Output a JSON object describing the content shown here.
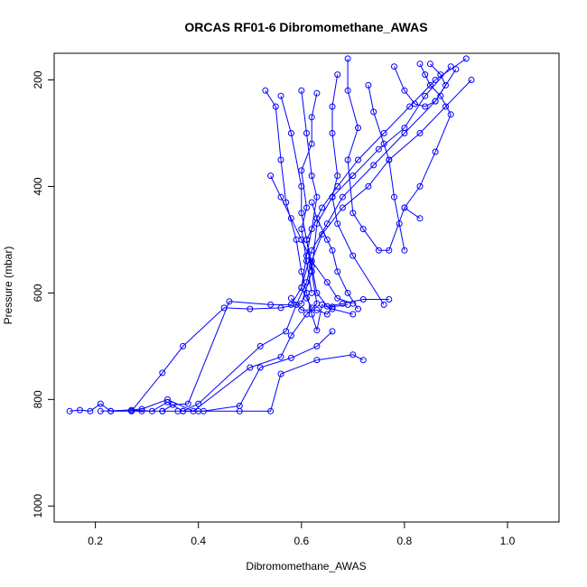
{
  "chart_data": {
    "type": "scatter",
    "title": "ORCAS RF01-6 Dibromomethane_AWAS",
    "xlabel": "Dibromomethane_AWAS",
    "ylabel": "Pressure (mbar)",
    "xlim": [
      0.12,
      1.1
    ],
    "ylim": [
      1030,
      150
    ],
    "y_reversed": true,
    "x_ticks": [
      0.2,
      0.4,
      0.6,
      0.8,
      1.0
    ],
    "x_tick_labels": [
      "0.2",
      "0.4",
      "0.6",
      "0.8",
      "1.0"
    ],
    "y_ticks": [
      200,
      400,
      600,
      800,
      1000
    ],
    "y_tick_labels": [
      "200",
      "400",
      "600",
      "800",
      "1000"
    ],
    "series_color": "#0000ff",
    "marker": "open-circle",
    "connected_by_lines": true,
    "grid": false,
    "legend": "none",
    "series": [
      {
        "points": [
          [
            0.15,
            822
          ],
          [
            0.17,
            820
          ],
          [
            0.19,
            822
          ],
          [
            0.21,
            808
          ],
          [
            0.23,
            822
          ],
          [
            0.27,
            822
          ],
          [
            0.29,
            822
          ],
          [
            0.33,
            822
          ],
          [
            0.36,
            822
          ],
          [
            0.4,
            822
          ],
          [
            0.48,
            822
          ],
          [
            0.54,
            822
          ],
          [
            0.56,
            752
          ],
          [
            0.63,
            726
          ],
          [
            0.7,
            716
          ],
          [
            0.72,
            726
          ]
        ]
      },
      {
        "points": [
          [
            0.21,
            822
          ],
          [
            0.27,
            820
          ],
          [
            0.31,
            822
          ],
          [
            0.34,
            805
          ],
          [
            0.37,
            822
          ],
          [
            0.41,
            822
          ],
          [
            0.48,
            812
          ],
          [
            0.52,
            740
          ],
          [
            0.58,
            722
          ],
          [
            0.63,
            700
          ],
          [
            0.66,
            672
          ]
        ]
      },
      {
        "points": [
          [
            0.23,
            822
          ],
          [
            0.29,
            818
          ],
          [
            0.34,
            800
          ],
          [
            0.39,
            822
          ],
          [
            0.5,
            740
          ],
          [
            0.56,
            720
          ],
          [
            0.58,
            680
          ],
          [
            0.61,
            640
          ],
          [
            0.63,
            620
          ],
          [
            0.62,
            560
          ],
          [
            0.61,
            500
          ],
          [
            0.64,
            440
          ],
          [
            0.67,
            400
          ],
          [
            0.71,
            350
          ],
          [
            0.76,
            300
          ],
          [
            0.81,
            250
          ],
          [
            0.86,
            200
          ],
          [
            0.92,
            160
          ]
        ]
      },
      {
        "points": [
          [
            0.27,
            822
          ],
          [
            0.33,
            750
          ],
          [
            0.37,
            700
          ],
          [
            0.45,
            628
          ],
          [
            0.5,
            630
          ],
          [
            0.56,
            628
          ],
          [
            0.6,
            620
          ],
          [
            0.62,
            560
          ],
          [
            0.63,
            470
          ],
          [
            0.66,
            420
          ],
          [
            0.7,
            380
          ],
          [
            0.75,
            330
          ],
          [
            0.8,
            290
          ],
          [
            0.84,
            230
          ],
          [
            0.89,
            175
          ]
        ]
      },
      {
        "points": [
          [
            0.33,
            822
          ],
          [
            0.35,
            810
          ],
          [
            0.38,
            808
          ],
          [
            0.46,
            616
          ],
          [
            0.54,
            622
          ],
          [
            0.58,
            622
          ],
          [
            0.6,
            590
          ],
          [
            0.62,
            520
          ],
          [
            0.65,
            470
          ],
          [
            0.68,
            420
          ],
          [
            0.74,
            360
          ],
          [
            0.8,
            300
          ],
          [
            0.86,
            240
          ],
          [
            0.9,
            180
          ]
        ]
      },
      {
        "points": [
          [
            0.37,
            822
          ],
          [
            0.4,
            808
          ],
          [
            0.52,
            700
          ],
          [
            0.57,
            672
          ],
          [
            0.59,
            622
          ],
          [
            0.61,
            580
          ],
          [
            0.62,
            540
          ],
          [
            0.64,
            490
          ],
          [
            0.68,
            440
          ],
          [
            0.73,
            400
          ],
          [
            0.77,
            350
          ],
          [
            0.83,
            300
          ],
          [
            0.88,
            250
          ],
          [
            0.93,
            200
          ]
        ]
      },
      {
        "points": [
          [
            0.53,
            220
          ],
          [
            0.55,
            250
          ],
          [
            0.56,
            350
          ],
          [
            0.57,
            430
          ],
          [
            0.59,
            500
          ],
          [
            0.6,
            560
          ],
          [
            0.61,
            600
          ],
          [
            0.62,
            640
          ],
          [
            0.63,
            670
          ],
          [
            0.64,
            622
          ],
          [
            0.66,
            630
          ],
          [
            0.7,
            640
          ]
        ]
      },
      {
        "points": [
          [
            0.56,
            230
          ],
          [
            0.58,
            300
          ],
          [
            0.6,
            400
          ],
          [
            0.6,
            450
          ],
          [
            0.61,
            500
          ],
          [
            0.62,
            550
          ],
          [
            0.63,
            600
          ],
          [
            0.65,
            625
          ],
          [
            0.68,
            620
          ],
          [
            0.72,
            612
          ],
          [
            0.77,
            612
          ]
        ]
      },
      {
        "points": [
          [
            0.6,
            220
          ],
          [
            0.61,
            300
          ],
          [
            0.62,
            380
          ],
          [
            0.63,
            420
          ],
          [
            0.62,
            480
          ],
          [
            0.61,
            530
          ],
          [
            0.6,
            590
          ],
          [
            0.61,
            610
          ],
          [
            0.62,
            628
          ]
        ]
      },
      {
        "points": [
          [
            0.63,
            225
          ],
          [
            0.62,
            270
          ],
          [
            0.62,
            320
          ],
          [
            0.6,
            370
          ],
          [
            0.61,
            440
          ],
          [
            0.6,
            480
          ],
          [
            0.61,
            540
          ],
          [
            0.62,
            600
          ]
        ]
      },
      {
        "points": [
          [
            0.67,
            190
          ],
          [
            0.66,
            250
          ],
          [
            0.66,
            300
          ],
          [
            0.67,
            380
          ],
          [
            0.66,
            420
          ],
          [
            0.67,
            470
          ],
          [
            0.7,
            530
          ],
          [
            0.76,
            622
          ]
        ]
      },
      {
        "points": [
          [
            0.69,
            160
          ],
          [
            0.69,
            220
          ],
          [
            0.71,
            290
          ],
          [
            0.69,
            350
          ],
          [
            0.7,
            450
          ],
          [
            0.72,
            480
          ],
          [
            0.75,
            520
          ],
          [
            0.77,
            520
          ],
          [
            0.8,
            440
          ],
          [
            0.83,
            460
          ]
        ]
      },
      {
        "points": [
          [
            0.73,
            210
          ],
          [
            0.74,
            260
          ],
          [
            0.76,
            320
          ],
          [
            0.77,
            350
          ],
          [
            0.78,
            420
          ],
          [
            0.79,
            470
          ],
          [
            0.8,
            520
          ]
        ]
      },
      {
        "points": [
          [
            0.78,
            175
          ],
          [
            0.8,
            220
          ],
          [
            0.82,
            245
          ],
          [
            0.84,
            250
          ],
          [
            0.86,
            240
          ],
          [
            0.88,
            210
          ],
          [
            0.87,
            190
          ],
          [
            0.85,
            170
          ]
        ]
      },
      {
        "points": [
          [
            0.62,
            430
          ],
          [
            0.63,
            460
          ],
          [
            0.65,
            500
          ],
          [
            0.66,
            520
          ],
          [
            0.67,
            560
          ],
          [
            0.69,
            600
          ],
          [
            0.71,
            630
          ]
        ]
      },
      {
        "points": [
          [
            0.54,
            380
          ],
          [
            0.56,
            420
          ],
          [
            0.58,
            460
          ],
          [
            0.6,
            500
          ],
          [
            0.62,
            540
          ],
          [
            0.65,
            580
          ],
          [
            0.67,
            610
          ],
          [
            0.7,
            620
          ]
        ]
      },
      {
        "points": [
          [
            0.58,
            610
          ],
          [
            0.6,
            632
          ],
          [
            0.63,
            632
          ],
          [
            0.65,
            640
          ],
          [
            0.66,
            626
          ],
          [
            0.69,
            622
          ]
        ]
      },
      {
        "points": [
          [
            0.83,
            170
          ],
          [
            0.84,
            190
          ],
          [
            0.85,
            210
          ],
          [
            0.87,
            230
          ],
          [
            0.89,
            265
          ],
          [
            0.86,
            335
          ],
          [
            0.83,
            400
          ],
          [
            0.8,
            440
          ]
        ]
      }
    ]
  }
}
